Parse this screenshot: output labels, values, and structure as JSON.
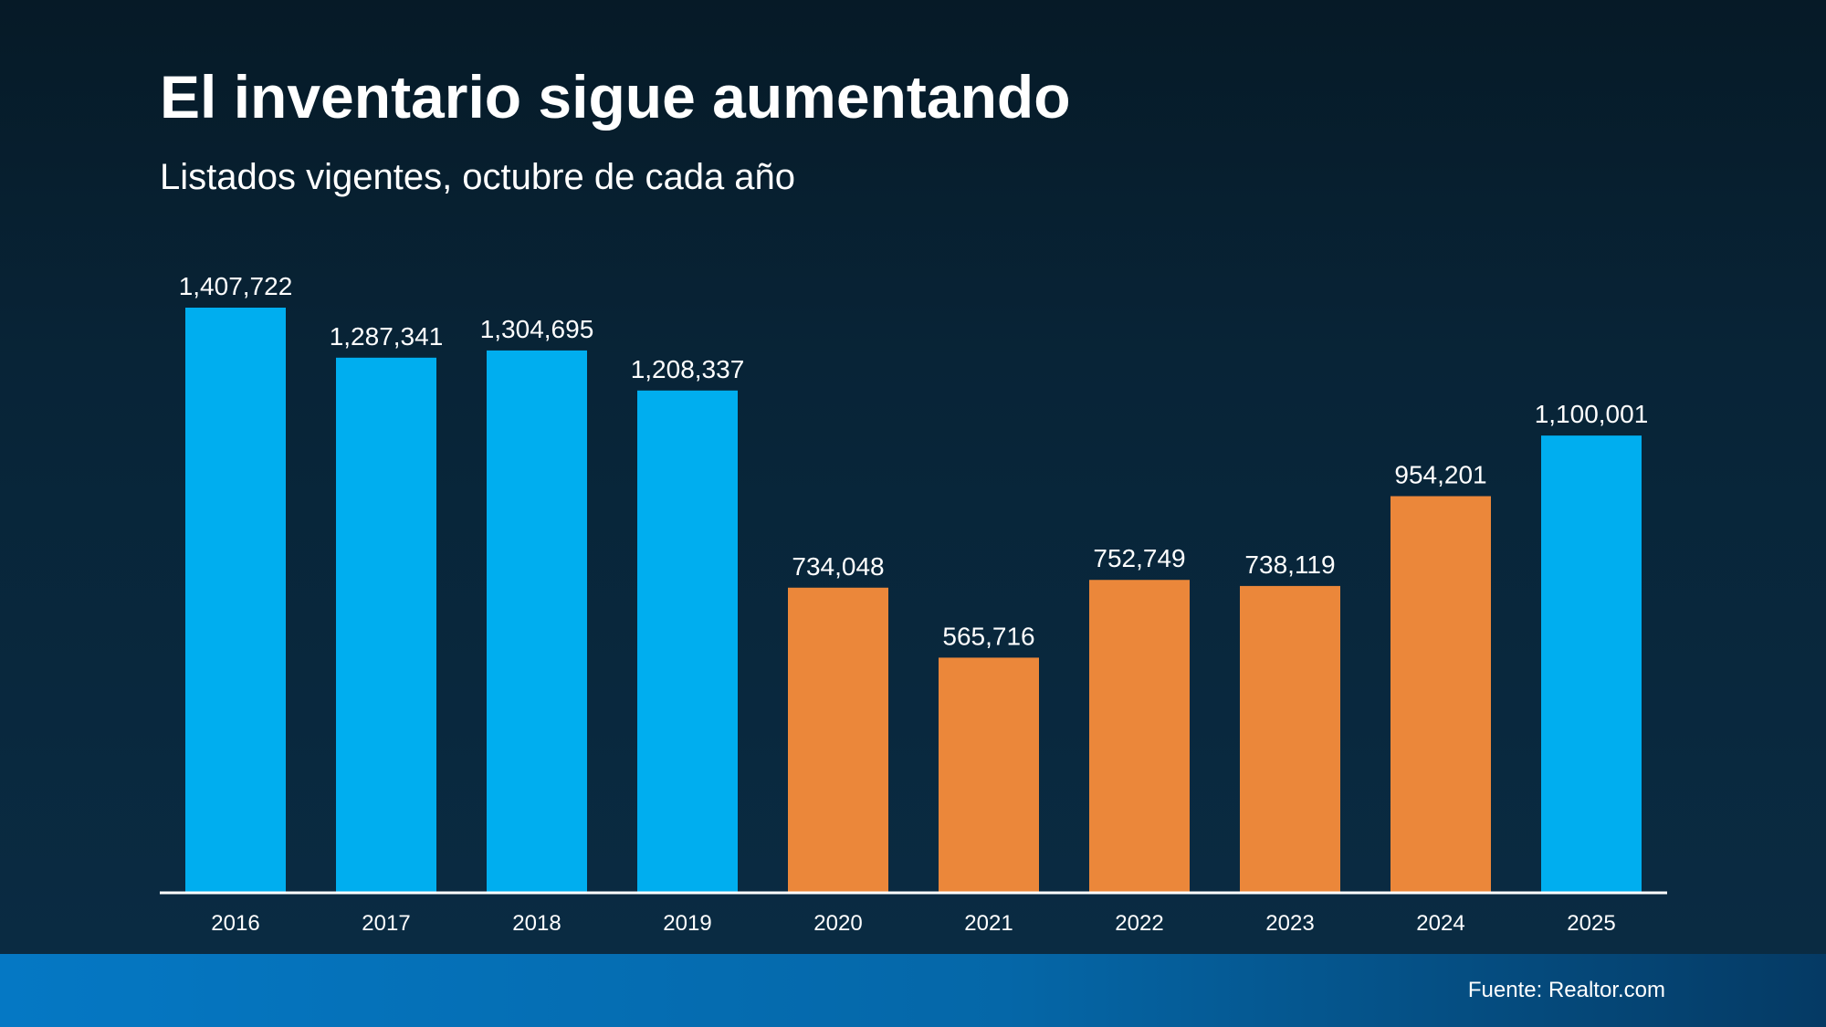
{
  "title": "El inventario sigue aumentando",
  "subtitle": "Listados vigentes, octubre de cada año",
  "source": "Fuente: Realtor.com",
  "colors": {
    "blue": "#00AEEF",
    "orange": "#EB873A",
    "text": "#FFFFFF",
    "axis": "#FFFFFF"
  },
  "chart_data": {
    "type": "bar",
    "title": "El inventario sigue aumentando",
    "subtitle": "Listados vigentes, octubre de cada año",
    "xlabel": "",
    "ylabel": "",
    "categories": [
      "2016",
      "2017",
      "2018",
      "2019",
      "2020",
      "2021",
      "2022",
      "2023",
      "2024",
      "2025"
    ],
    "values": [
      1407722,
      1287341,
      1304695,
      1208337,
      734048,
      565716,
      752749,
      738119,
      954201,
      1100001
    ],
    "value_labels": [
      "1,407,722",
      "1,287,341",
      "1,304,695",
      "1,208,337",
      "734,048",
      "565,716",
      "752,749",
      "738,119",
      "954,201",
      "1,100,001"
    ],
    "bar_colors": [
      "blue",
      "blue",
      "blue",
      "blue",
      "orange",
      "orange",
      "orange",
      "orange",
      "orange",
      "blue"
    ],
    "ylim": [
      0,
      1407722
    ],
    "grid": false,
    "legend": "none"
  }
}
